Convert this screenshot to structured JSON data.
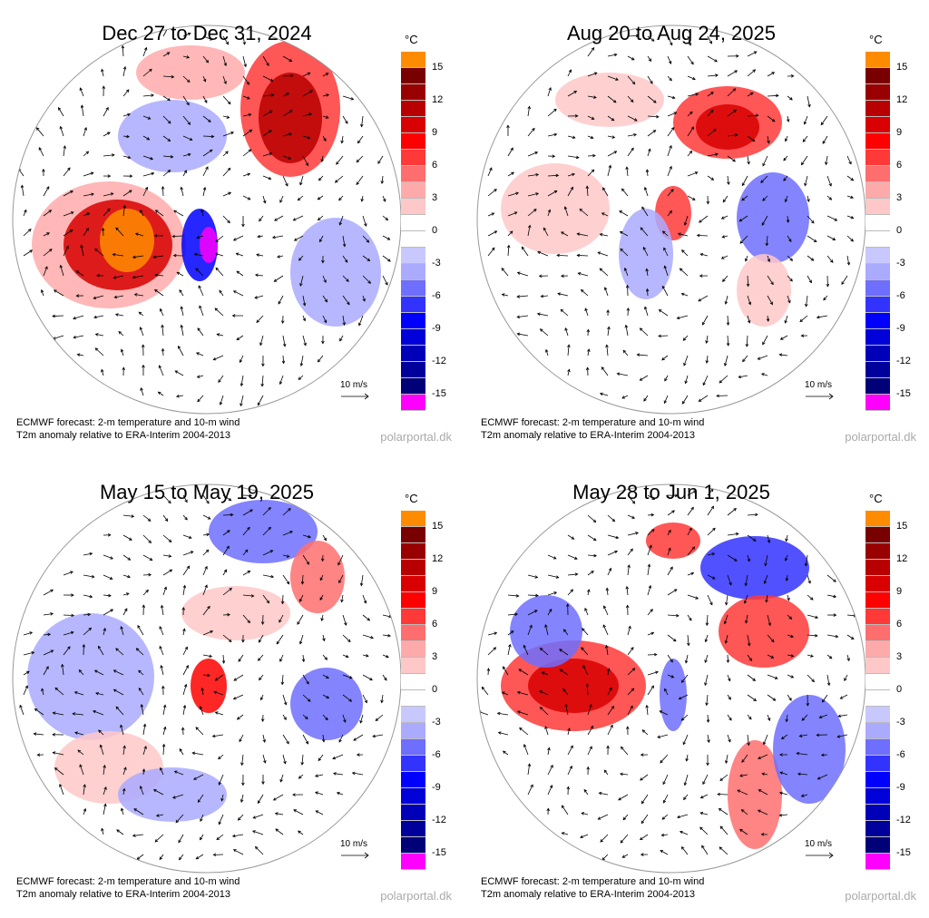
{
  "panels": [
    {
      "title": "Dec 27 to Dec 31, 2024"
    },
    {
      "title": "Aug 20 to Aug 24, 2025"
    },
    {
      "title": "May 15 to May 19, 2025"
    },
    {
      "title": "May 28 to Jun 1, 2025"
    }
  ],
  "colorbar": {
    "unit": "°C",
    "ticks": [
      "15",
      "12",
      "9",
      "6",
      "3",
      "0",
      "-3",
      "-6",
      "-9",
      "-12",
      "-15"
    ],
    "colors": [
      "#ff8c00",
      "#780000",
      "#990000",
      "#b80000",
      "#d80000",
      "#ff0000",
      "#ff3838",
      "#ff6e6e",
      "#ffaaaa",
      "#ffc8c8",
      "#ffffff",
      "#ffffff",
      "#c8c8ff",
      "#aaaaff",
      "#6e6eff",
      "#3333ff",
      "#0000ff",
      "#0000d8",
      "#0000b8",
      "#00009a",
      "#000078",
      "#ff00ff"
    ]
  },
  "wind_reference": "10 m/s",
  "footer": {
    "line1": "ECMWF forecast: 2-m temperature and 10-m wind",
    "line2": "T2m anomaly relative to ERA-Interim 2004-2013"
  },
  "watermark": "polarportal.dk"
}
